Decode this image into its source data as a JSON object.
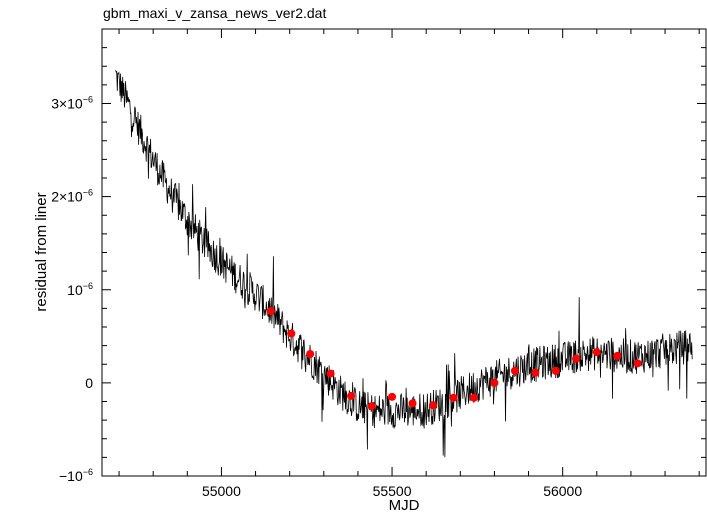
{
  "chart_data": {
    "type": "scatter",
    "title": "gbm_maxi_v_zansa_news_ver2.dat",
    "xlabel": "MJD",
    "ylabel": "residual from liner",
    "xlim": [
      54650,
      56420
    ],
    "ylim": [
      -1e-06,
      3.8e-06
    ],
    "x_ticks": [
      {
        "value": 55000,
        "label": "55000"
      },
      {
        "value": 55500,
        "label": "55500"
      },
      {
        "value": 56000,
        "label": "56000"
      }
    ],
    "y_ticks": [
      {
        "value": -1e-06,
        "label": "−10",
        "exp": "−6"
      },
      {
        "value": 0,
        "label": "0",
        "exp": ""
      },
      {
        "value": 1e-06,
        "label": "10",
        "exp": "−6"
      },
      {
        "value": 2e-06,
        "label": "2×10",
        "exp": "−6"
      },
      {
        "value": 3e-06,
        "label": "3×10",
        "exp": "−6"
      }
    ],
    "grid": false,
    "series": [
      {
        "style": "line",
        "color": "#000000",
        "trend": [
          [
            54690,
            3.3e-06
          ],
          [
            54750,
            2.8e-06
          ],
          [
            54800,
            2.4e-06
          ],
          [
            54850,
            2.05e-06
          ],
          [
            54900,
            1.75e-06
          ],
          [
            54950,
            1.5e-06
          ],
          [
            55000,
            1.3e-06
          ],
          [
            55050,
            1.12e-06
          ],
          [
            55100,
            9.5e-07
          ],
          [
            55150,
            7.5e-07
          ],
          [
            55200,
            5e-07
          ],
          [
            55250,
            3e-07
          ],
          [
            55300,
            1e-07
          ],
          [
            55350,
            -1e-07
          ],
          [
            55400,
            -2.5e-07
          ],
          [
            55450,
            -3e-07
          ],
          [
            55500,
            -3e-07
          ],
          [
            55550,
            -3e-07
          ],
          [
            55600,
            -2.8e-07
          ],
          [
            55650,
            -2.2e-07
          ],
          [
            55700,
            -1.2e-07
          ],
          [
            55750,
            -2e-08
          ],
          [
            55800,
            5e-08
          ],
          [
            55850,
            1.2e-07
          ],
          [
            55900,
            1.8e-07
          ],
          [
            55950,
            2.2e-07
          ],
          [
            56000,
            2.5e-07
          ],
          [
            56050,
            3e-07
          ],
          [
            56100,
            3.2e-07
          ],
          [
            56150,
            3e-07
          ],
          [
            56200,
            2.8e-07
          ],
          [
            56250,
            3e-07
          ],
          [
            56300,
            3.5e-07
          ],
          [
            56380,
            4e-07
          ]
        ]
      },
      {
        "style": "markers",
        "color": "#ff0000",
        "x": [
          55145,
          55205,
          55260,
          55320,
          55380,
          55440,
          55500,
          55560,
          55620,
          55680,
          55740,
          55800,
          55860,
          55920,
          55980,
          56040,
          56100,
          56160,
          56220
        ],
        "y": [
          7.7e-07,
          5.3e-07,
          3.1e-07,
          1e-07,
          -1.4e-07,
          -2.5e-07,
          -1.5e-07,
          -2.2e-07,
          -2.4e-07,
          -1.6e-07,
          -1.6e-07,
          0.0,
          1.3e-07,
          1.1e-07,
          1.3e-07,
          2.6e-07,
          3.3e-07,
          2.9e-07,
          2.1e-07
        ]
      }
    ]
  }
}
